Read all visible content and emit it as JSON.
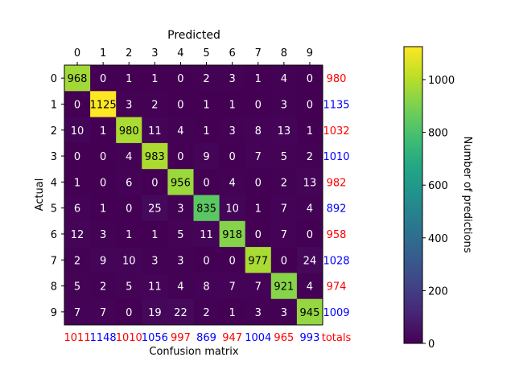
{
  "chart_data": {
    "type": "heatmap",
    "title": "Predicted",
    "xlabel": "Confusion matrix",
    "ylabel": "Actual",
    "x_ticks": [
      "0",
      "1",
      "2",
      "3",
      "4",
      "5",
      "6",
      "7",
      "8",
      "9"
    ],
    "y_ticks": [
      "0",
      "1",
      "2",
      "3",
      "4",
      "5",
      "6",
      "7",
      "8",
      "9"
    ],
    "matrix": [
      [
        968,
        0,
        1,
        1,
        0,
        2,
        3,
        1,
        4,
        0
      ],
      [
        0,
        1125,
        3,
        2,
        0,
        1,
        1,
        0,
        3,
        0
      ],
      [
        10,
        1,
        980,
        11,
        4,
        1,
        3,
        8,
        13,
        1
      ],
      [
        0,
        0,
        4,
        983,
        0,
        9,
        0,
        7,
        5,
        2
      ],
      [
        1,
        0,
        6,
        0,
        956,
        0,
        4,
        0,
        2,
        13
      ],
      [
        6,
        1,
        0,
        25,
        3,
        835,
        10,
        1,
        7,
        4
      ],
      [
        12,
        3,
        1,
        1,
        5,
        11,
        918,
        0,
        7,
        0
      ],
      [
        2,
        9,
        10,
        3,
        3,
        0,
        0,
        977,
        0,
        24
      ],
      [
        5,
        2,
        5,
        11,
        4,
        8,
        7,
        7,
        921,
        4
      ],
      [
        7,
        7,
        0,
        19,
        22,
        2,
        1,
        3,
        3,
        945
      ]
    ],
    "row_totals": [
      "980",
      "1135",
      "1032",
      "1010",
      "982",
      "892",
      "958",
      "1028",
      "974",
      "1009"
    ],
    "row_total_colors": [
      "#ff0000",
      "#0000ff",
      "#ff0000",
      "#0000ff",
      "#ff0000",
      "#0000ff",
      "#ff0000",
      "#0000ff",
      "#ff0000",
      "#0000ff"
    ],
    "col_totals": [
      "1011",
      "1148",
      "1010",
      "1056",
      "997",
      "869",
      "947",
      "1004",
      "965",
      "993"
    ],
    "col_total_colors": [
      "#ff0000",
      "#0000ff",
      "#ff0000",
      "#0000ff",
      "#ff0000",
      "#0000ff",
      "#ff0000",
      "#0000ff",
      "#ff0000",
      "#0000ff"
    ],
    "totals_label": "totals",
    "totals_label_color": "#ff0000",
    "colorbar": {
      "label": "Number of predictions",
      "min": 0,
      "max": 1125,
      "ticks": [
        0,
        200,
        400,
        600,
        800,
        1000
      ],
      "colormap": "viridis"
    }
  }
}
